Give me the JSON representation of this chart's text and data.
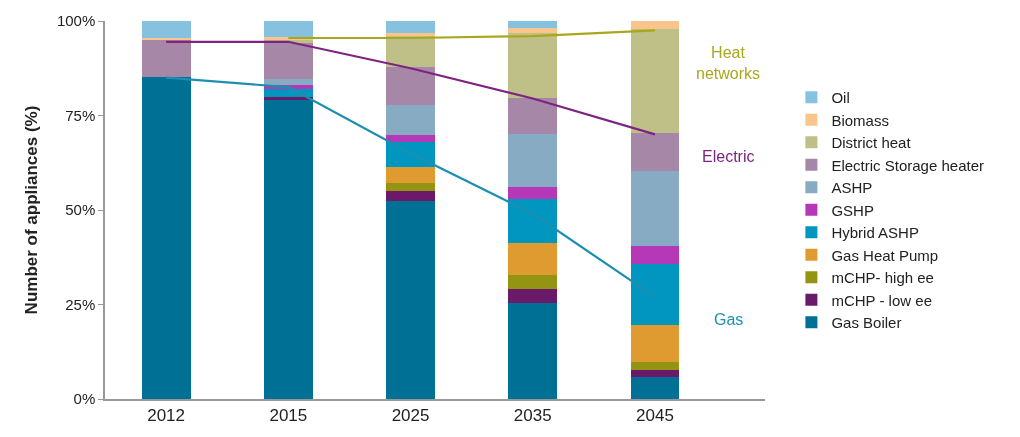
{
  "chart_data": {
    "type": "bar",
    "stacked": true,
    "ylabel": "Number of appliances (%)",
    "categories": [
      "2012",
      "2015",
      "2025",
      "2035",
      "2045"
    ],
    "ylim": [
      0,
      100
    ],
    "yticks": [
      {
        "value": 0,
        "label": "0%"
      },
      {
        "value": 25,
        "label": "25%"
      },
      {
        "value": 50,
        "label": "50%"
      },
      {
        "value": 75,
        "label": "75%"
      },
      {
        "value": 100,
        "label": "100%"
      }
    ],
    "legend": "right",
    "series": [
      {
        "name": "Gas Boiler",
        "color": "#007095",
        "values": [
          85.1,
          79.0,
          52.3,
          25.5,
          5.9
        ]
      },
      {
        "name": "mCHP - low ee",
        "color": "#6a1a68",
        "values": [
          0,
          0.8,
          2.7,
          3.5,
          1.7
        ]
      },
      {
        "name": "mCHP- high ee",
        "color": "#939512",
        "values": [
          0,
          0,
          2.1,
          3.7,
          2.3
        ]
      },
      {
        "name": "Gas Heat Pump",
        "color": "#e09b30",
        "values": [
          0,
          0,
          4.2,
          8.5,
          9.6
        ]
      },
      {
        "name": "Hybrid ASHP",
        "color": "#0096bf",
        "values": [
          0,
          2.3,
          6.7,
          11.8,
          16.3
        ]
      },
      {
        "name": "GSHP",
        "color": "#b438b8",
        "values": [
          0,
          0.9,
          1.9,
          3.2,
          4.8
        ]
      },
      {
        "name": "ASHP",
        "color": "#87abc2",
        "values": [
          0,
          1.6,
          7.8,
          13.8,
          19.8
        ]
      },
      {
        "name": "Electric Storage heater",
        "color": "#a687a7",
        "values": [
          10.0,
          9.7,
          10.1,
          9.7,
          9.9
        ]
      },
      {
        "name": "District heat",
        "color": "#bfbf88",
        "values": [
          0,
          0.9,
          8.2,
          17.2,
          27.5
        ]
      },
      {
        "name": "Biomass",
        "color": "#fac58c",
        "values": [
          0.4,
          0.5,
          0.8,
          1.2,
          2.2
        ]
      },
      {
        "name": "Oil",
        "color": "#86c1e0",
        "values": [
          4.5,
          4.3,
          3.2,
          1.9,
          0
        ]
      },
      {
        "name": "Gas",
        "type": "line",
        "color": "#1c8fb0",
        "values": [
          85,
          82.5,
          65,
          49,
          27
        ]
      },
      {
        "name": "Electric",
        "type": "line",
        "color": "#7d2482",
        "values": [
          94.5,
          94.5,
          87.5,
          79.5,
          70
        ]
      },
      {
        "name": "Heat networks",
        "type": "line",
        "color": "#a8a81c",
        "values": [
          null,
          95.5,
          95.5,
          96,
          97.5
        ]
      }
    ]
  }
}
